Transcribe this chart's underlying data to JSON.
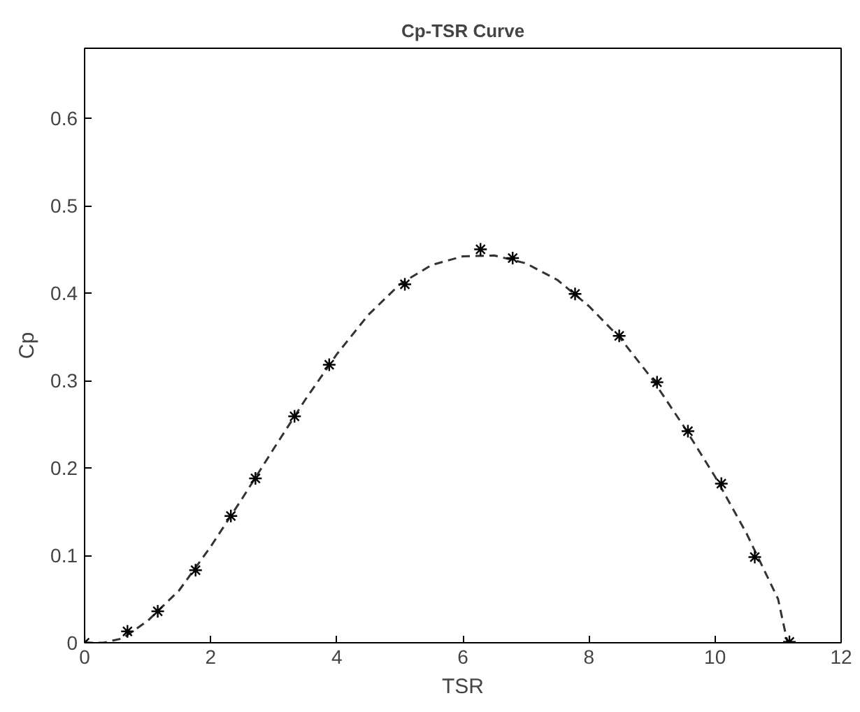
{
  "chart_data": {
    "type": "scatter",
    "title": "Cp-TSR Curve",
    "xlabel": "TSR",
    "ylabel": "Cp",
    "x": [
      0,
      0.68,
      1.16,
      1.76,
      2.32,
      2.71,
      3.33,
      3.88,
      5.08,
      6.28,
      6.79,
      7.78,
      8.48,
      9.08,
      9.57,
      10.1,
      10.63,
      11.18
    ],
    "series": [
      {
        "color": "#000000",
        "marker": "cross",
        "values": [
          0,
          0.013,
          0.036,
          0.083,
          0.145,
          0.188,
          0.259,
          0.318,
          0.41,
          0.45,
          0.44,
          0.399,
          0.351,
          0.298,
          0.242,
          0.182,
          0.098,
          0.001
        ]
      },
      {
        "type": "line",
        "color": "#333333",
        "line_style": "dashed",
        "x": [
          0,
          0.3,
          0.6,
          1.0,
          1.5,
          2.0,
          2.5,
          3.0,
          3.5,
          4.0,
          4.5,
          5.0,
          5.5,
          6.0,
          6.5,
          7.0,
          7.5,
          8.0,
          8.5,
          9.0,
          9.5,
          10.0,
          10.5,
          11.0,
          11.15
        ],
        "values": [
          0,
          0,
          0.005,
          0.025,
          0.06,
          0.11,
          0.165,
          0.222,
          0.278,
          0.33,
          0.375,
          0.41,
          0.432,
          0.442,
          0.443,
          0.434,
          0.415,
          0.385,
          0.348,
          0.302,
          0.248,
          0.19,
          0.125,
          0.05,
          0
        ]
      }
    ],
    "xlim": [
      0,
      12
    ],
    "ylim": [
      0,
      0.68
    ],
    "xticks": [
      0,
      2,
      4,
      6,
      8,
      10,
      12
    ],
    "yticks": [
      0,
      0.1,
      0.2,
      0.3,
      0.4,
      0.5,
      0.6
    ],
    "grid": false
  }
}
